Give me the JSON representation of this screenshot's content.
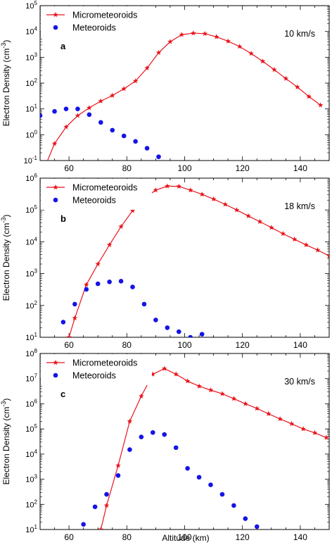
{
  "figure": {
    "xlabel": "Altitude (km)",
    "ylabel_prefix": "Electron Density (cm",
    "ylabel_exp": "-3",
    "ylabel_suffix": ")"
  },
  "chart_data": [
    {
      "type": "scatter",
      "panel_label": "a",
      "speed_label": "10 km/s",
      "xlim": [
        50,
        150
      ],
      "ylim_exp": [
        -1,
        5
      ],
      "y_scale": "log",
      "x_ticks": [
        60,
        80,
        100,
        120,
        140
      ],
      "y_tick_exps": [
        -1,
        0,
        1,
        2,
        3,
        4,
        5
      ],
      "legend_position": "top-left",
      "series": [
        {
          "name": "Micrometeoroids",
          "style": "line-star",
          "color": "#e8141c",
          "x": [
            52,
            55,
            59,
            63,
            67,
            71,
            75,
            79,
            83,
            87,
            91,
            95,
            99,
            103,
            107,
            111,
            115,
            119,
            123,
            127,
            131,
            135,
            139,
            143,
            147
          ],
          "y": [
            0.07,
            0.45,
            2.0,
            5.5,
            11,
            20,
            33,
            60,
            120,
            380,
            1500,
            4000,
            7500,
            8600,
            8200,
            6200,
            4200,
            2600,
            1400,
            700,
            330,
            150,
            70,
            30,
            14
          ]
        },
        {
          "name": "Meteoroids",
          "style": "dots",
          "color": "#1414e6",
          "x": [
            50,
            55,
            59,
            63,
            67,
            71,
            75,
            79,
            83,
            87,
            91
          ],
          "y": [
            5.5,
            8,
            10,
            10,
            6,
            3,
            1.5,
            0.9,
            0.55,
            0.3,
            0.14
          ]
        }
      ]
    },
    {
      "type": "scatter",
      "panel_label": "b",
      "speed_label": "18 km/s",
      "xlim": [
        50,
        150
      ],
      "ylim_exp": [
        1,
        6
      ],
      "y_scale": "log",
      "x_ticks": [
        60,
        80,
        100,
        120,
        140
      ],
      "y_tick_exps": [
        1,
        2,
        3,
        4,
        5,
        6
      ],
      "legend_position": "top-left",
      "series": [
        {
          "name": "Micrometeoroids",
          "style": "line-star",
          "color": "#e8141c",
          "x": [
            60,
            62,
            66,
            70,
            74,
            78,
            82,
            86,
            90,
            94,
            98,
            102,
            106,
            110,
            114,
            118,
            122,
            126,
            130,
            134,
            138,
            142,
            146,
            150
          ],
          "y": [
            10,
            40,
            450,
            2000,
            8000,
            30000,
            95000,
            230000,
            420000,
            560000,
            550000,
            420000,
            310000,
            220000,
            150000,
            100000,
            65000,
            43000,
            28000,
            18000,
            12000,
            8000,
            5500,
            3600
          ]
        },
        {
          "name": "Meteoroids",
          "style": "dots",
          "color": "#1414e6",
          "x": [
            58,
            62,
            66,
            70,
            74,
            78,
            82,
            86,
            90,
            94,
            98,
            102,
            106
          ],
          "y": [
            30,
            110,
            320,
            480,
            550,
            580,
            380,
            110,
            35,
            20,
            15,
            10,
            12.5
          ]
        }
      ]
    },
    {
      "type": "scatter",
      "panel_label": "c",
      "speed_label": "30 km/s",
      "xlim": [
        50,
        150
      ],
      "ylim_exp": [
        1,
        8
      ],
      "y_scale": "log",
      "x_ticks": [
        60,
        80,
        100,
        120,
        140
      ],
      "y_tick_exps": [
        1,
        2,
        3,
        4,
        5,
        6,
        7,
        8
      ],
      "legend_position": "top-left",
      "series": [
        {
          "name": "Micrometeoroids",
          "style": "line-star",
          "color": "#e8141c",
          "x": [
            71,
            73,
            77,
            81,
            85,
            89,
            93,
            97,
            101,
            105,
            109,
            113,
            117,
            121,
            125,
            129,
            133,
            137,
            141,
            145,
            149
          ],
          "y": [
            10,
            90,
            3500,
            200000,
            2000000,
            15000000,
            25000000,
            15000000,
            8000000,
            5000000,
            3500000,
            2500000,
            1600000,
            1000000,
            650000,
            400000,
            250000,
            160000,
            100000,
            70000,
            45000
          ]
        },
        {
          "name": "Meteoroids",
          "style": "dots",
          "color": "#1414e6",
          "x": [
            65,
            69,
            73,
            77,
            81,
            85,
            89,
            93,
            97,
            101,
            105,
            109,
            113,
            117,
            121,
            125
          ],
          "y": [
            16,
            80,
            250,
            1400,
            15000,
            48000,
            72000,
            60000,
            18000,
            2700,
            1200,
            600,
            250,
            90,
            27,
            13
          ]
        }
      ]
    }
  ]
}
